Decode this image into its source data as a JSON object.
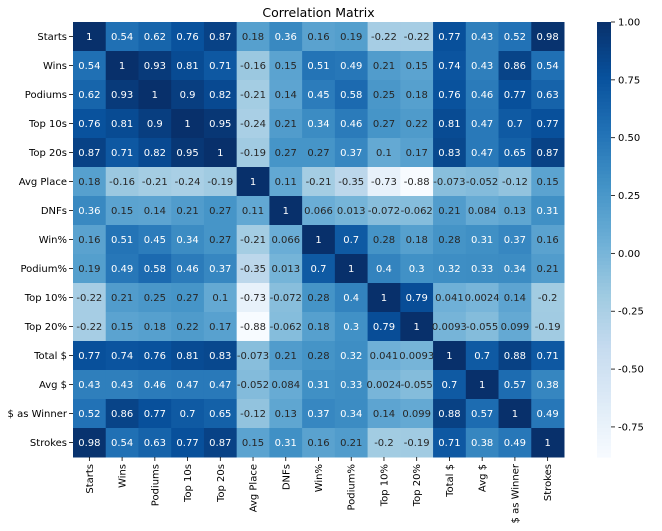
{
  "chart_data": {
    "type": "heatmap",
    "title": "Correlation Matrix",
    "xlabel": "",
    "ylabel": "",
    "row_labels": [
      "Starts",
      "Wins",
      "Podiums",
      "Top 10s",
      "Top 20s",
      "Avg Place",
      "DNFs",
      "Win%",
      "Podium%",
      "Top 10%",
      "Top 20%",
      "Total $",
      "Avg $",
      "$ as Winner",
      "Strokes"
    ],
    "col_labels": [
      "Starts",
      "Wins",
      "Podiums",
      "Top 10s",
      "Top 20s",
      "Avg Place",
      "DNFs",
      "Win%",
      "Podium%",
      "Top 10%",
      "Top 20%",
      "Total $",
      "Avg $",
      "$ as Winner",
      "Strokes"
    ],
    "values": [
      [
        "1",
        "0.54",
        "0.62",
        "0.76",
        "0.87",
        "0.18",
        "0.36",
        "0.16",
        "0.19",
        "-0.22",
        "-0.22",
        "0.77",
        "0.43",
        "0.52",
        "0.98"
      ],
      [
        "0.54",
        "1",
        "0.93",
        "0.81",
        "0.71",
        "-0.16",
        "0.15",
        "0.51",
        "0.49",
        "0.21",
        "0.15",
        "0.74",
        "0.43",
        "0.86",
        "0.54"
      ],
      [
        "0.62",
        "0.93",
        "1",
        "0.9",
        "0.82",
        "-0.21",
        "0.14",
        "0.45",
        "0.58",
        "0.25",
        "0.18",
        "0.76",
        "0.46",
        "0.77",
        "0.63"
      ],
      [
        "0.76",
        "0.81",
        "0.9",
        "1",
        "0.95",
        "-0.24",
        "0.21",
        "0.34",
        "0.46",
        "0.27",
        "0.22",
        "0.81",
        "0.47",
        "0.7",
        "0.77"
      ],
      [
        "0.87",
        "0.71",
        "0.82",
        "0.95",
        "1",
        "-0.19",
        "0.27",
        "0.27",
        "0.37",
        "0.1",
        "0.17",
        "0.83",
        "0.47",
        "0.65",
        "0.87"
      ],
      [
        "0.18",
        "-0.16",
        "-0.21",
        "-0.24",
        "-0.19",
        "1",
        "0.11",
        "-0.21",
        "-0.35",
        "-0.73",
        "-0.88",
        "-0.073",
        "-0.052",
        "-0.12",
        "0.15"
      ],
      [
        "0.36",
        "0.15",
        "0.14",
        "0.21",
        "0.27",
        "0.11",
        "1",
        "0.066",
        "0.013",
        "-0.072",
        "-0.062",
        "0.21",
        "0.084",
        "0.13",
        "0.31"
      ],
      [
        "0.16",
        "0.51",
        "0.45",
        "0.34",
        "0.27",
        "-0.21",
        "0.066",
        "1",
        "0.7",
        "0.28",
        "0.18",
        "0.28",
        "0.31",
        "0.37",
        "0.16"
      ],
      [
        "0.19",
        "0.49",
        "0.58",
        "0.46",
        "0.37",
        "-0.35",
        "0.013",
        "0.7",
        "1",
        "0.4",
        "0.3",
        "0.32",
        "0.33",
        "0.34",
        "0.21"
      ],
      [
        "-0.22",
        "0.21",
        "0.25",
        "0.27",
        "0.1",
        "-0.73",
        "-0.072",
        "0.28",
        "0.4",
        "1",
        "0.79",
        "0.041",
        "0.0024",
        "0.14",
        "-0.2"
      ],
      [
        "-0.22",
        "0.15",
        "0.18",
        "0.22",
        "0.17",
        "-0.88",
        "-0.062",
        "0.18",
        "0.3",
        "0.79",
        "1",
        "0.0093",
        "-0.055",
        "0.099",
        "-0.19"
      ],
      [
        "0.77",
        "0.74",
        "0.76",
        "0.81",
        "0.83",
        "-0.073",
        "0.21",
        "0.28",
        "0.32",
        "0.041",
        "0.0093",
        "1",
        "0.7",
        "0.88",
        "0.71"
      ],
      [
        "0.43",
        "0.43",
        "0.46",
        "0.47",
        "0.47",
        "-0.052",
        "0.084",
        "0.31",
        "0.33",
        "0.0024",
        "-0.055",
        "0.7",
        "1",
        "0.57",
        "0.38"
      ],
      [
        "0.52",
        "0.86",
        "0.77",
        "0.7",
        "0.65",
        "-0.12",
        "0.13",
        "0.37",
        "0.34",
        "0.14",
        "0.099",
        "0.88",
        "0.57",
        "1",
        "0.49"
      ],
      [
        "0.98",
        "0.54",
        "0.63",
        "0.77",
        "0.87",
        "0.15",
        "0.31",
        "0.16",
        "0.21",
        "-0.2",
        "-0.19",
        "0.71",
        "0.38",
        "0.49",
        "1"
      ]
    ],
    "vmin": -0.88,
    "vmax": 1.0,
    "colormap": "Blues",
    "colorbar_ticks": [
      "1.00",
      "0.75",
      "0.50",
      "0.25",
      "0.00",
      "-0.25",
      "-0.50",
      "-0.75"
    ],
    "annotate": true,
    "grid": false
  },
  "colors": {
    "cmap_stops": [
      "#f7fbff",
      "#deebf7",
      "#c6dbef",
      "#9ecae1",
      "#6baed6",
      "#4292c6",
      "#2171b5",
      "#08519c",
      "#08306b"
    ],
    "text_dark": "#262626",
    "text_light": "#ffffff"
  }
}
